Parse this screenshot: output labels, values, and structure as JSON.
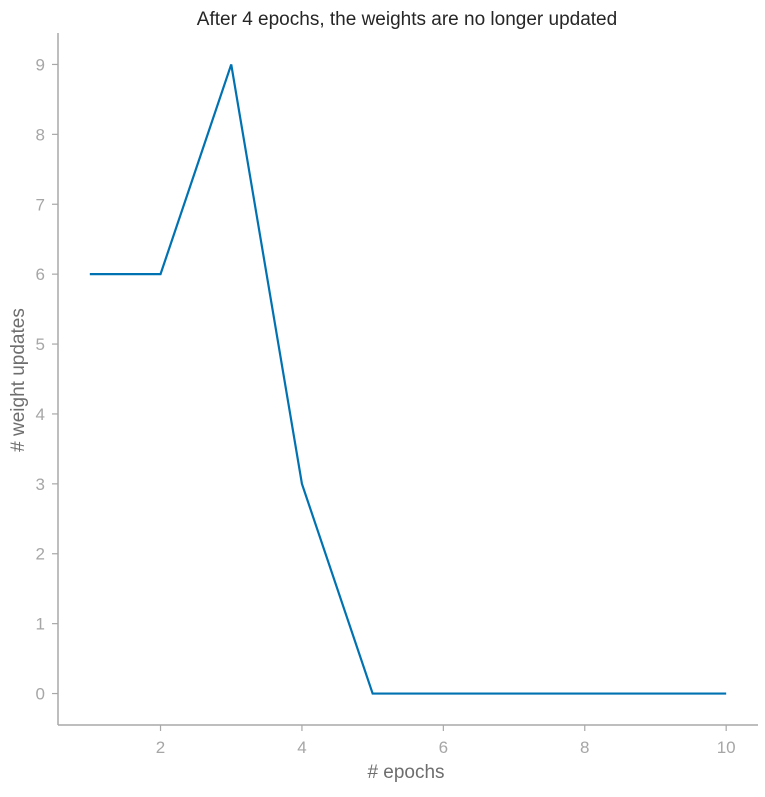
{
  "chart_data": {
    "type": "line",
    "title": "After 4 epochs, the weights are no longer updated",
    "xlabel": "# epochs",
    "ylabel": "# weight updates",
    "x": [
      1,
      2,
      3,
      4,
      5,
      6,
      7,
      8,
      9,
      10
    ],
    "series": [
      {
        "values": [
          6,
          6,
          9,
          3,
          0,
          0,
          0,
          0,
          0,
          0
        ],
        "color": "#0072b2"
      }
    ],
    "xticks": [
      2,
      4,
      6,
      8,
      10
    ],
    "yticks": [
      0,
      1,
      2,
      3,
      4,
      5,
      6,
      7,
      8,
      9
    ],
    "xlim": [
      0.55,
      10.45
    ],
    "ylim": [
      -0.45,
      9.45
    ],
    "grid": false,
    "legend": "none",
    "spine_color": "#a8a8a8",
    "tick_label_color": "#a6a6a6",
    "axis_label_color": "#6e6e6e",
    "title_color": "#262626"
  }
}
